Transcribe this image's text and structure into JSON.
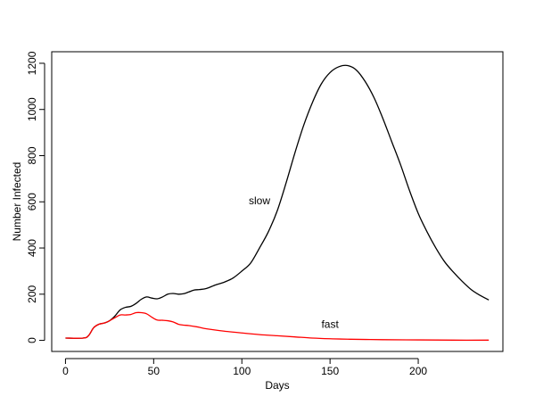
{
  "chart_data": {
    "type": "line",
    "title": "",
    "xlabel": "Days",
    "ylabel": "Number Infected",
    "xlim": [
      -7.8,
      248
    ],
    "ylim": [
      -48,
      1250
    ],
    "xticks": [
      0,
      50,
      100,
      150,
      200
    ],
    "yticks": [
      0,
      200,
      400,
      600,
      800,
      1000,
      1200
    ],
    "grid": false,
    "legend": "none",
    "series": [
      {
        "name": "slow",
        "color": "#000000",
        "label_at": [
          110,
          590
        ],
        "points": [
          [
            0,
            10
          ],
          [
            10,
            10
          ],
          [
            13,
            20
          ],
          [
            16,
            55
          ],
          [
            19,
            70
          ],
          [
            22,
            75
          ],
          [
            25,
            85
          ],
          [
            28,
            105
          ],
          [
            31,
            132
          ],
          [
            34,
            143
          ],
          [
            37,
            147
          ],
          [
            40,
            160
          ],
          [
            43,
            178
          ],
          [
            46,
            188
          ],
          [
            49,
            183
          ],
          [
            52,
            180
          ],
          [
            55,
            188
          ],
          [
            58,
            200
          ],
          [
            61,
            203
          ],
          [
            64,
            200
          ],
          [
            67,
            202
          ],
          [
            70,
            210
          ],
          [
            73,
            218
          ],
          [
            76,
            220
          ],
          [
            80,
            225
          ],
          [
            85,
            240
          ],
          [
            90,
            252
          ],
          [
            95,
            270
          ],
          [
            100,
            300
          ],
          [
            105,
            335
          ],
          [
            110,
            400
          ],
          [
            115,
            470
          ],
          [
            120,
            560
          ],
          [
            125,
            680
          ],
          [
            130,
            810
          ],
          [
            135,
            930
          ],
          [
            140,
            1030
          ],
          [
            145,
            1110
          ],
          [
            150,
            1160
          ],
          [
            155,
            1185
          ],
          [
            160,
            1190
          ],
          [
            165,
            1170
          ],
          [
            170,
            1120
          ],
          [
            175,
            1050
          ],
          [
            180,
            960
          ],
          [
            185,
            860
          ],
          [
            190,
            760
          ],
          [
            195,
            650
          ],
          [
            200,
            550
          ],
          [
            205,
            470
          ],
          [
            210,
            400
          ],
          [
            215,
            340
          ],
          [
            220,
            295
          ],
          [
            225,
            255
          ],
          [
            230,
            220
          ],
          [
            235,
            195
          ],
          [
            240,
            175
          ]
        ]
      },
      {
        "name": "fast",
        "color": "#ff0000",
        "label_at": [
          150,
          55
        ],
        "points": [
          [
            0,
            10
          ],
          [
            10,
            10
          ],
          [
            13,
            20
          ],
          [
            16,
            55
          ],
          [
            19,
            70
          ],
          [
            22,
            75
          ],
          [
            25,
            85
          ],
          [
            28,
            98
          ],
          [
            31,
            110
          ],
          [
            34,
            110
          ],
          [
            37,
            112
          ],
          [
            40,
            120
          ],
          [
            43,
            120
          ],
          [
            46,
            115
          ],
          [
            49,
            100
          ],
          [
            52,
            88
          ],
          [
            55,
            87
          ],
          [
            58,
            85
          ],
          [
            61,
            80
          ],
          [
            64,
            70
          ],
          [
            67,
            66
          ],
          [
            70,
            64
          ],
          [
            75,
            58
          ],
          [
            80,
            50
          ],
          [
            90,
            40
          ],
          [
            100,
            32
          ],
          [
            110,
            25
          ],
          [
            120,
            20
          ],
          [
            130,
            15
          ],
          [
            140,
            10
          ],
          [
            150,
            7
          ],
          [
            160,
            5
          ],
          [
            170,
            4
          ],
          [
            180,
            3
          ],
          [
            200,
            2
          ],
          [
            220,
            1
          ],
          [
            240,
            1
          ]
        ]
      }
    ]
  }
}
